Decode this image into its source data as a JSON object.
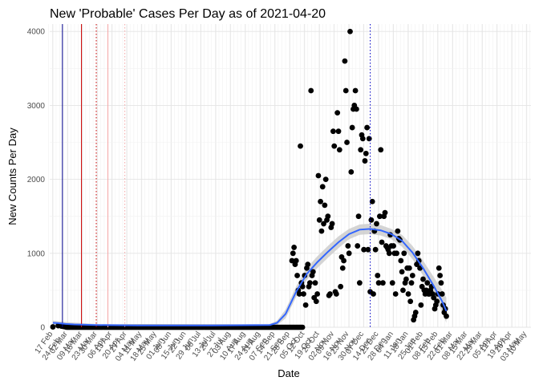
{
  "chart_data": {
    "type": "scatter",
    "title": "New 'Probable' Cases Per Day as of 2021-04-20",
    "xlabel": "Date",
    "ylabel": "New Counts Per Day",
    "ylim": [
      0,
      4100
    ],
    "yticks": [
      0,
      1000,
      2000,
      3000,
      4000
    ],
    "x_unit": "day index from 17 Feb 2020",
    "xlim": [
      -3,
      452
    ],
    "x_tick_labels": [
      "17 Feb",
      "02 Mar",
      "16 Mar",
      "30 Mar",
      "13 Apr",
      "27 Apr",
      "11 May",
      "25 May",
      "08 Jun",
      "22 Jun",
      "06 Jul",
      "20 Jul",
      "03 Aug",
      "17 Aug",
      "31 Aug",
      "14 Sep",
      "28 Sep",
      "12 Oct",
      "26 Oct",
      "09 Nov",
      "23 Nov",
      "07 Dec",
      "21 Dec",
      "04 Jan",
      "18 Jan",
      "01 Feb",
      "15 Feb",
      "01 Mar",
      "15 Mar",
      "29 Mar",
      "12 Apr",
      "26 Apr",
      "10 May"
    ],
    "x_tick_labels_secondary": [
      "24 Feb",
      "09 Mar",
      "23 Mar",
      "06 Apr",
      "20 Apr",
      "04 May",
      "18 May",
      "01 Jun",
      "15 Jun",
      "29 Jun",
      "13 Jul",
      "27 Jul",
      "10 Aug",
      "24 Aug",
      "07 Sep",
      "21 Sep",
      "05 Oct",
      "19 Oct",
      "02 Nov",
      "16 Nov",
      "30 Nov",
      "14 Dec",
      "28 Dec",
      "11 Jan",
      "25 Jan",
      "08 Feb",
      "22 Feb",
      "08 Mar",
      "22 Mar",
      "05 Apr",
      "19 Apr",
      "03 May"
    ],
    "vlines": [
      {
        "x": 9,
        "color": "#00008b",
        "style": "solid"
      },
      {
        "x": 27,
        "color": "#cc0000",
        "style": "solid"
      },
      {
        "x": 41,
        "color": "#cc0000",
        "style": "dotted"
      },
      {
        "x": 52,
        "color": "#f4a6a6",
        "style": "solid"
      },
      {
        "x": 68,
        "color": "#f4a6a6",
        "style": "dotted"
      },
      {
        "x": 300,
        "color": "#0000cc",
        "style": "dotted"
      }
    ],
    "series": [
      {
        "name": "daily probable cases",
        "points": [
          [
            0,
            5
          ],
          [
            5,
            20
          ],
          [
            8,
            15
          ],
          [
            10,
            10
          ],
          [
            12,
            5
          ],
          [
            226,
            900
          ],
          [
            227,
            1000
          ],
          [
            228,
            1080
          ],
          [
            229,
            850
          ],
          [
            230,
            900
          ],
          [
            231,
            700
          ],
          [
            232,
            500
          ],
          [
            233,
            450
          ],
          [
            234,
            2450
          ],
          [
            235,
            600
          ],
          [
            236,
            550
          ],
          [
            237,
            450
          ],
          [
            238,
            700
          ],
          [
            239,
            300
          ],
          [
            240,
            800
          ],
          [
            241,
            850
          ],
          [
            242,
            550
          ],
          [
            243,
            600
          ],
          [
            244,
            3200
          ],
          [
            245,
            700
          ],
          [
            246,
            750
          ],
          [
            247,
            400
          ],
          [
            248,
            600
          ],
          [
            249,
            350
          ],
          [
            250,
            450
          ],
          [
            251,
            2050
          ],
          [
            252,
            1450
          ],
          [
            253,
            1700
          ],
          [
            254,
            1300
          ],
          [
            255,
            1900
          ],
          [
            256,
            1400
          ],
          [
            257,
            1650
          ],
          [
            258,
            2000
          ],
          [
            259,
            1450
          ],
          [
            260,
            1500
          ],
          [
            261,
            430
          ],
          [
            262,
            450
          ],
          [
            263,
            1350
          ],
          [
            264,
            1400
          ],
          [
            265,
            2650
          ],
          [
            266,
            2450
          ],
          [
            267,
            480
          ],
          [
            268,
            450
          ],
          [
            269,
            2900
          ],
          [
            270,
            2650
          ],
          [
            271,
            2400
          ],
          [
            272,
            550
          ],
          [
            273,
            950
          ],
          [
            274,
            800
          ],
          [
            275,
            900
          ],
          [
            276,
            3600
          ],
          [
            277,
            3200
          ],
          [
            278,
            2500
          ],
          [
            279,
            1100
          ],
          [
            280,
            1000
          ],
          [
            281,
            4000
          ],
          [
            282,
            2100
          ],
          [
            283,
            2700
          ],
          [
            284,
            2950
          ],
          [
            285,
            3000
          ],
          [
            286,
            3200
          ],
          [
            287,
            2950
          ],
          [
            288,
            1100
          ],
          [
            289,
            1500
          ],
          [
            290,
            600
          ],
          [
            291,
            2400
          ],
          [
            292,
            2600
          ],
          [
            293,
            2550
          ],
          [
            294,
            1050
          ],
          [
            295,
            2250
          ],
          [
            296,
            2350
          ],
          [
            297,
            2700
          ],
          [
            298,
            1050
          ],
          [
            299,
            2550
          ],
          [
            300,
            480
          ],
          [
            301,
            1450
          ],
          [
            302,
            1700
          ],
          [
            303,
            450
          ],
          [
            304,
            1300
          ],
          [
            305,
            1050
          ],
          [
            306,
            1400
          ],
          [
            307,
            700
          ],
          [
            308,
            600
          ],
          [
            309,
            1500
          ],
          [
            310,
            2400
          ],
          [
            311,
            1150
          ],
          [
            312,
            600
          ],
          [
            313,
            1500
          ],
          [
            314,
            1550
          ],
          [
            315,
            1100
          ],
          [
            316,
            1080
          ],
          [
            317,
            1050
          ],
          [
            318,
            1000
          ],
          [
            319,
            1250
          ],
          [
            320,
            1100
          ],
          [
            321,
            600
          ],
          [
            322,
            1100
          ],
          [
            323,
            1000
          ],
          [
            324,
            450
          ],
          [
            325,
            1000
          ],
          [
            326,
            1300
          ],
          [
            327,
            1200
          ],
          [
            328,
            1180
          ],
          [
            329,
            900
          ],
          [
            330,
            750
          ],
          [
            331,
            500
          ],
          [
            332,
            1000
          ],
          [
            333,
            600
          ],
          [
            334,
            650
          ],
          [
            335,
            800
          ],
          [
            336,
            450
          ],
          [
            337,
            800
          ],
          [
            338,
            350
          ],
          [
            339,
            600
          ],
          [
            340,
            700
          ],
          [
            341,
            100
          ],
          [
            342,
            150
          ],
          [
            343,
            200
          ],
          [
            344,
            850
          ],
          [
            345,
            1000
          ],
          [
            346,
            900
          ],
          [
            347,
            800
          ],
          [
            348,
            300
          ],
          [
            349,
            550
          ],
          [
            350,
            650
          ],
          [
            351,
            500
          ],
          [
            352,
            450
          ],
          [
            353,
            500
          ],
          [
            354,
            600
          ],
          [
            355,
            450
          ],
          [
            356,
            450
          ],
          [
            357,
            500
          ],
          [
            358,
            550
          ],
          [
            359,
            450
          ],
          [
            360,
            400
          ],
          [
            361,
            250
          ],
          [
            362,
            300
          ],
          [
            363,
            350
          ],
          [
            364,
            450
          ],
          [
            365,
            800
          ],
          [
            366,
            700
          ],
          [
            367,
            600
          ],
          [
            368,
            450
          ],
          [
            369,
            300
          ],
          [
            370,
            200
          ],
          [
            371,
            250
          ],
          [
            372,
            150
          ]
        ]
      },
      {
        "name": "smoothed trend",
        "color": "#3366ff",
        "points": [
          [
            0,
            60
          ],
          [
            5,
            55
          ],
          [
            12,
            45
          ],
          [
            20,
            38
          ],
          [
            40,
            30
          ],
          [
            80,
            25
          ],
          [
            150,
            25
          ],
          [
            205,
            30
          ],
          [
            212,
            60
          ],
          [
            220,
            180
          ],
          [
            230,
            480
          ],
          [
            240,
            720
          ],
          [
            250,
            880
          ],
          [
            260,
            1020
          ],
          [
            270,
            1150
          ],
          [
            280,
            1260
          ],
          [
            290,
            1320
          ],
          [
            300,
            1330
          ],
          [
            310,
            1310
          ],
          [
            320,
            1260
          ],
          [
            330,
            1170
          ],
          [
            340,
            1010
          ],
          [
            350,
            800
          ],
          [
            360,
            560
          ],
          [
            368,
            350
          ],
          [
            372,
            220
          ]
        ]
      },
      {
        "name": "confidence band",
        "color": "#cccccc",
        "upper": [
          [
            0,
            90
          ],
          [
            12,
            70
          ],
          [
            40,
            45
          ],
          [
            150,
            40
          ],
          [
            205,
            45
          ],
          [
            212,
            90
          ],
          [
            220,
            240
          ],
          [
            230,
            550
          ],
          [
            240,
            800
          ],
          [
            250,
            960
          ],
          [
            260,
            1100
          ],
          [
            270,
            1230
          ],
          [
            280,
            1330
          ],
          [
            290,
            1390
          ],
          [
            300,
            1400
          ],
          [
            310,
            1380
          ],
          [
            320,
            1330
          ],
          [
            330,
            1250
          ],
          [
            340,
            1100
          ],
          [
            350,
            900
          ],
          [
            360,
            680
          ],
          [
            368,
            500
          ],
          [
            372,
            400
          ]
        ],
        "lower": [
          [
            0,
            30
          ],
          [
            12,
            20
          ],
          [
            40,
            15
          ],
          [
            150,
            10
          ],
          [
            205,
            15
          ],
          [
            212,
            30
          ],
          [
            220,
            120
          ],
          [
            230,
            410
          ],
          [
            240,
            640
          ],
          [
            250,
            800
          ],
          [
            260,
            940
          ],
          [
            270,
            1070
          ],
          [
            280,
            1190
          ],
          [
            290,
            1250
          ],
          [
            300,
            1260
          ],
          [
            310,
            1240
          ],
          [
            320,
            1190
          ],
          [
            330,
            1090
          ],
          [
            340,
            920
          ],
          [
            350,
            700
          ],
          [
            360,
            440
          ],
          [
            368,
            200
          ],
          [
            372,
            60
          ]
        ]
      }
    ]
  }
}
